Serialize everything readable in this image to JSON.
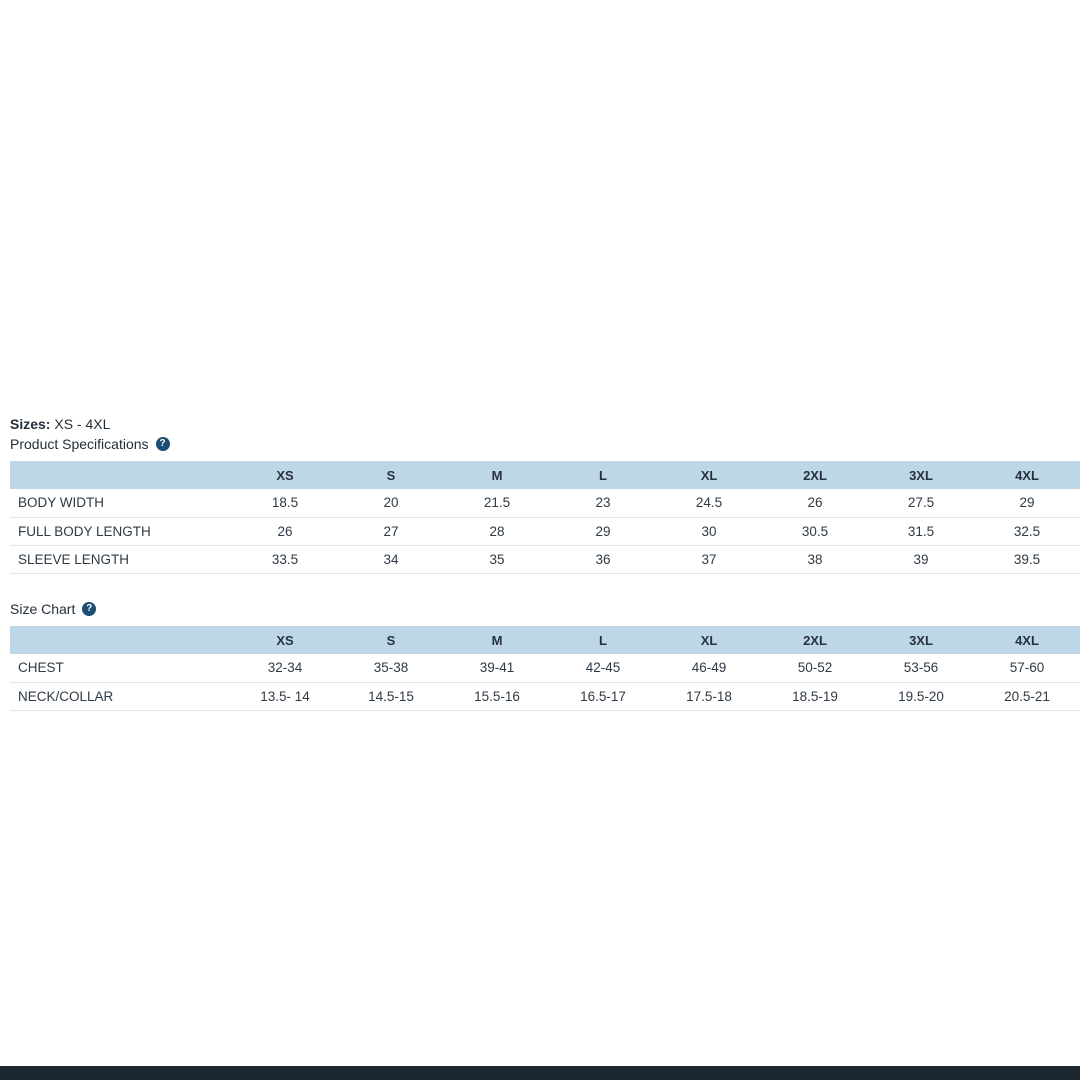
{
  "page": {
    "sizes_label": "Sizes:",
    "sizes_value": "XS - 4XL"
  },
  "icons": {
    "help_glyph": "?"
  },
  "colors": {
    "table_header_bg": "#bed7e7",
    "help_icon_bg": "#1e4d72",
    "text": "#232f3a",
    "row_border": "#e4e4e4",
    "footer_bar": "#1c2732"
  },
  "sections": [
    {
      "title": "Product Specifications",
      "columns": [
        "XS",
        "S",
        "M",
        "L",
        "XL",
        "2XL",
        "3XL",
        "4XL"
      ],
      "rows": [
        {
          "label": "BODY WIDTH",
          "values": [
            "18.5",
            "20",
            "21.5",
            "23",
            "24.5",
            "26",
            "27.5",
            "29"
          ]
        },
        {
          "label": "FULL BODY LENGTH",
          "values": [
            "26",
            "27",
            "28",
            "29",
            "30",
            "30.5",
            "31.5",
            "32.5"
          ]
        },
        {
          "label": "SLEEVE LENGTH",
          "values": [
            "33.5",
            "34",
            "35",
            "36",
            "37",
            "38",
            "39",
            "39.5"
          ]
        }
      ]
    },
    {
      "title": "Size Chart",
      "columns": [
        "XS",
        "S",
        "M",
        "L",
        "XL",
        "2XL",
        "3XL",
        "4XL"
      ],
      "rows": [
        {
          "label": "CHEST",
          "values": [
            "32-34",
            "35-38",
            "39-41",
            "42-45",
            "46-49",
            "50-52",
            "53-56",
            "57-60"
          ]
        },
        {
          "label": "NECK/COLLAR",
          "values": [
            "13.5- 14",
            "14.5-15",
            "15.5-16",
            "16.5-17",
            "17.5-18",
            "18.5-19",
            "19.5-20",
            "20.5-21"
          ]
        }
      ]
    }
  ]
}
